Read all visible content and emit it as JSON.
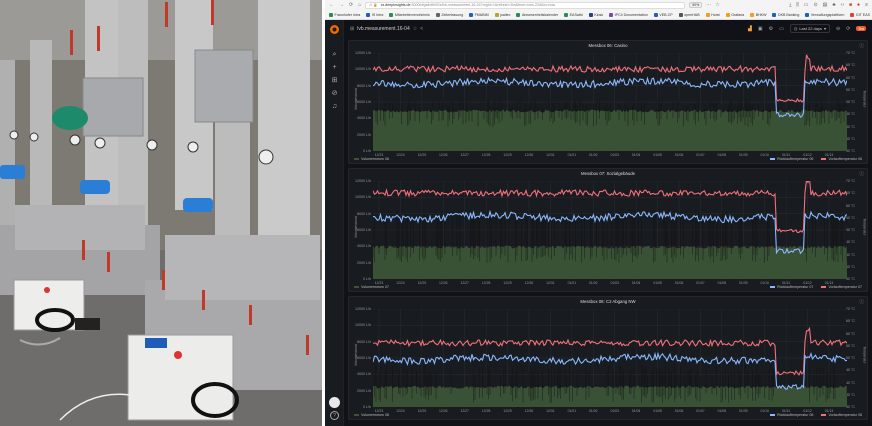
{
  "browser": {
    "nav_back": "←",
    "nav_forward": "→",
    "nav_reload": "⟳",
    "nav_home": "⌂",
    "url_prefix": "⊙ 🔒",
    "url_host": "xx.deepinsights.de",
    "url_path": ":3000/d/gsdofbNGz/lvb-measurement-16-04?orgId=1&refresh=5m&from=now-22d&to=now",
    "zoom_level": "90%",
    "menu_dots": "···",
    "toolbar_icons": [
      "download-icon",
      "library-icon",
      "sidebar-icon",
      "extension-icon",
      "reader-icon",
      "addon-icon",
      "code-icon",
      "stop-icon",
      "block-icon",
      "menu-icon"
    ]
  },
  "bookmarks": [
    {
      "label": "Fraunhofer Intra",
      "color": "#2e8b57"
    },
    {
      "label": "IS Intra",
      "color": "#1f5fbf"
    },
    {
      "label": "Mitarbeiterverzeichnis",
      "color": "#2e8b57"
    },
    {
      "label": "Zeiterfassung",
      "color": "#666666"
    },
    {
      "label": "FMABIM",
      "color": "#1f5fbf"
    },
    {
      "label": "jualtec",
      "color": "#b5a531"
    },
    {
      "label": "Abwesenheitskalender",
      "color": "#2e8b57"
    },
    {
      "label": "EASwiki",
      "color": "#2e8b57"
    },
    {
      "label": "Kiosk",
      "color": "#1f3f8f"
    },
    {
      "label": "IPC4 Documentation",
      "color": "#7a4ca8"
    },
    {
      "label": "VEB-CP",
      "color": "#1f5fbf"
    },
    {
      "label": "openHAB",
      "color": "#555555"
    },
    {
      "label": "Horst",
      "color": "#f0a020"
    },
    {
      "label": "Grafana",
      "color": "#f0a020"
    },
    {
      "label": "BHKW",
      "color": "#f0a020"
    },
    {
      "label": "DKB Banking",
      "color": "#1f5fbf"
    },
    {
      "label": "Verwaltungsplattform",
      "color": "#1f5fbf"
    },
    {
      "label": "GIT EAS",
      "color": "#e24329"
    }
  ],
  "grafana": {
    "dashboard_title": "lvb.measurement.16-04",
    "star_icon": "☆",
    "share_icon": "<",
    "time_range": "Last 22 days",
    "refresh_interval": "5m",
    "sidebar": [
      "search-icon",
      "plus-icon",
      "dashboards-icon",
      "explore-icon",
      "alerting-icon"
    ],
    "help_label": "?"
  },
  "panels": [
    {
      "title": "Messbox 06: Casino",
      "left_axis_label": "Volumenstrom",
      "right_axis_label": "Temperatur",
      "left_legend": "Volumenstrom 06",
      "right_legend": [
        "Rücklauftemperatur 06",
        "Vorlauftemperatur 06"
      ]
    },
    {
      "title": "Messbox 07: Sozialgebäude",
      "left_axis_label": "Volumenstrom",
      "right_axis_label": "Temperatur",
      "left_legend": "Volumenstrom 07",
      "right_legend": [
        "Rücklauftemperatur 07",
        "Vorlauftemperatur 07"
      ]
    },
    {
      "title": "Messbox 08: C2 Abgang NW",
      "left_axis_label": "Volumenstrom",
      "right_axis_label": "Temperatur",
      "left_legend": "Volumenstrom 08",
      "right_legend": [
        "Rücklauftemperatur 08",
        "Vorlauftemperatur 08"
      ]
    }
  ],
  "axes": {
    "y_left_ticks": [
      "12000 L/h",
      "10000 L/h",
      "8000 L/h",
      "6000 L/h",
      "4000 L/h",
      "2000 L/h",
      "0 L/h"
    ],
    "y_right_ticks": [
      "70 °C",
      "65 °C",
      "60 °C",
      "55 °C",
      "50 °C",
      "45 °C",
      "40 °C",
      "35 °C",
      "30 °C"
    ],
    "x_ticks": [
      "12/23",
      "12/24",
      "12/25",
      "12/26",
      "12/27",
      "12/28",
      "12/29",
      "12/30",
      "12/31",
      "01/01",
      "01/02",
      "01/03",
      "01/04",
      "01/05",
      "01/06",
      "01/07",
      "01/08",
      "01/09",
      "01/10",
      "01/11",
      "01/12",
      "01/13"
    ]
  },
  "colors": {
    "vorlauf": "#f2707c",
    "ruecklauf": "#8ab8ff",
    "volumen": "#3b5436",
    "grafana_orange": "#f05a28"
  }
}
